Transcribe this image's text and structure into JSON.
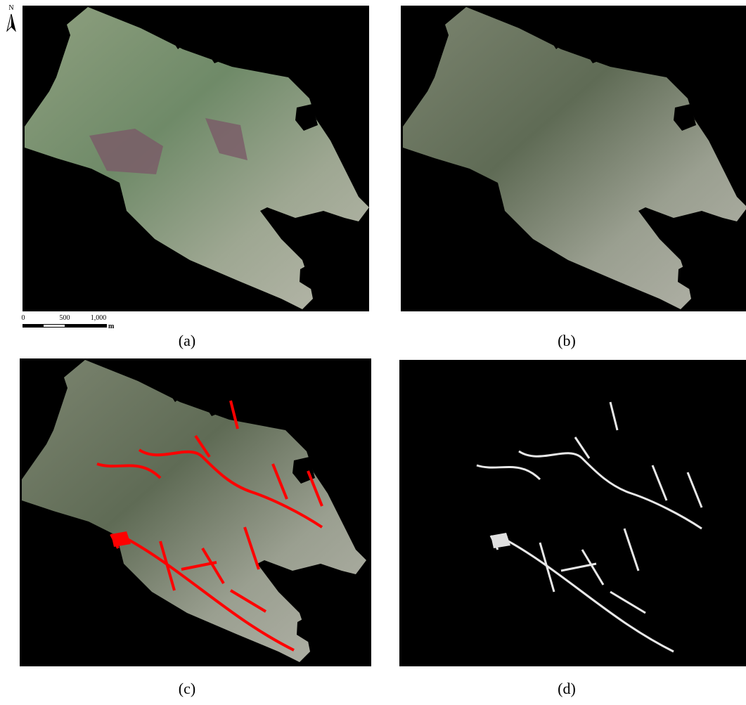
{
  "panels": [
    {
      "label": "(a)"
    },
    {
      "label": "(b)"
    },
    {
      "label": "(c)"
    },
    {
      "label": "(d)"
    }
  ],
  "north_arrow": "N",
  "scale_bar": {
    "ticks": [
      "0",
      "500",
      "1,000"
    ],
    "unit": "m"
  }
}
